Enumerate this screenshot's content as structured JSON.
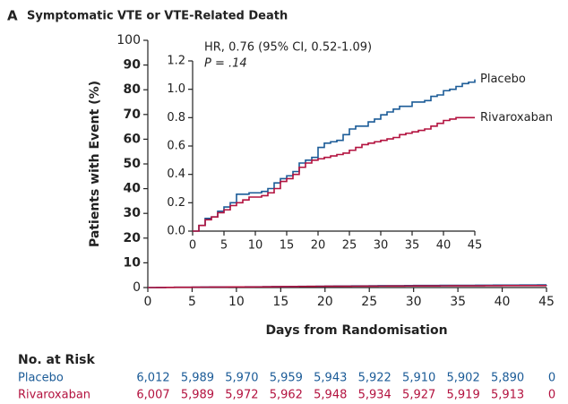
{
  "chart_data": {
    "type": "step",
    "panel": "A",
    "title": "Symptomatic VTE or VTE-Related Death",
    "x_label": "Days from Randomisation",
    "y_label": "Patients with Event (%)",
    "xlim": [
      0,
      45
    ],
    "xticks": [
      0,
      5,
      10,
      15,
      20,
      25,
      30,
      35,
      40,
      45
    ],
    "ylim": [
      0,
      100
    ],
    "yticks": [
      0,
      10,
      20,
      30,
      40,
      50,
      60,
      70,
      80,
      90,
      100
    ],
    "x": [
      0,
      1,
      2,
      3,
      4,
      5,
      6,
      7,
      8,
      9,
      10,
      11,
      12,
      13,
      14,
      15,
      16,
      17,
      18,
      19,
      20,
      21,
      22,
      23,
      24,
      25,
      26,
      27,
      28,
      29,
      30,
      31,
      32,
      33,
      34,
      35,
      36,
      37,
      38,
      39,
      40,
      41,
      42,
      43,
      44,
      45
    ],
    "series": [
      {
        "name": "Placebo",
        "color": "#1b5b97",
        "values": [
          0,
          0.04,
          0.09,
          0.1,
          0.14,
          0.17,
          0.2,
          0.26,
          0.26,
          0.27,
          0.27,
          0.28,
          0.3,
          0.34,
          0.37,
          0.39,
          0.42,
          0.48,
          0.5,
          0.52,
          0.59,
          0.62,
          0.63,
          0.64,
          0.68,
          0.72,
          0.74,
          0.74,
          0.77,
          0.79,
          0.82,
          0.84,
          0.86,
          0.88,
          0.88,
          0.91,
          0.91,
          0.92,
          0.95,
          0.96,
          0.99,
          1.0,
          1.02,
          1.04,
          1.05,
          1.07
        ]
      },
      {
        "name": "Rivaroxaban",
        "color": "#b3123f",
        "values": [
          0,
          0.04,
          0.08,
          0.1,
          0.13,
          0.15,
          0.18,
          0.2,
          0.22,
          0.24,
          0.24,
          0.25,
          0.27,
          0.3,
          0.35,
          0.37,
          0.4,
          0.45,
          0.48,
          0.5,
          0.51,
          0.52,
          0.53,
          0.54,
          0.55,
          0.57,
          0.59,
          0.61,
          0.62,
          0.63,
          0.64,
          0.65,
          0.66,
          0.68,
          0.69,
          0.7,
          0.71,
          0.72,
          0.74,
          0.76,
          0.78,
          0.79,
          0.8,
          0.8,
          0.8,
          0.8
        ]
      }
    ],
    "inset": {
      "xlim": [
        0,
        45
      ],
      "xticks": [
        0,
        5,
        10,
        15,
        20,
        25,
        30,
        35,
        40,
        45
      ],
      "ylim": [
        0,
        1.2
      ],
      "yticks": [
        {
          "value": 0,
          "label": "0.0"
        },
        0.2,
        0.4,
        0.6,
        0.8,
        {
          "value": 1,
          "label": "1.0"
        },
        1.2
      ],
      "annotations": [
        "HR, 0.76 (95% CI, 0.52-1.09)",
        "P = .14"
      ]
    },
    "risk_table": {
      "title": "No. at Risk",
      "rows": [
        [
          "6,012",
          "5,989",
          "5,970",
          "5,959",
          "5,943",
          "5,922",
          "5,910",
          "5,902",
          "5,890",
          "0"
        ],
        [
          "6,007",
          "5,989",
          "5,972",
          "5,962",
          "5,948",
          "5,934",
          "5,927",
          "5,919",
          "5,913",
          "0"
        ]
      ]
    }
  }
}
